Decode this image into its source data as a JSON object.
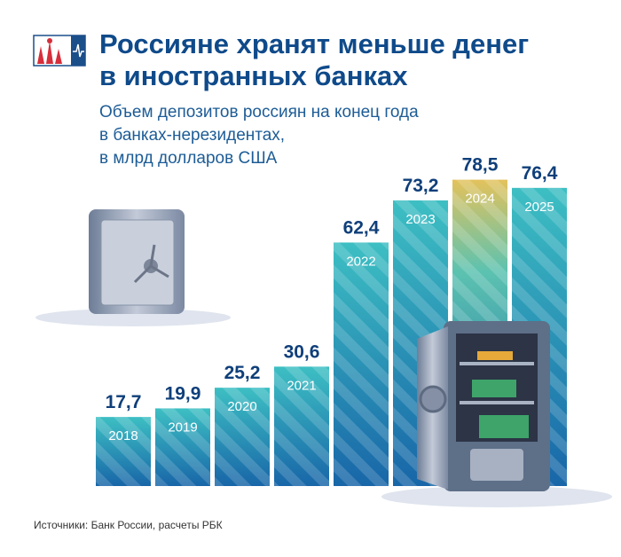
{
  "chart_data": {
    "type": "bar",
    "title": [
      "Россияне хранят меньше денег",
      "в иностранных банках"
    ],
    "subtitle": [
      "Объем депозитов россиян на конец года",
      "в банках-нерезидентах,",
      "в млрд долларов США"
    ],
    "categories": [
      "2018",
      "2019",
      "2020",
      "2021",
      "2022",
      "2023",
      "2024",
      "2025"
    ],
    "values": [
      17.7,
      19.9,
      25.2,
      30.6,
      62.4,
      73.2,
      78.5,
      76.4
    ],
    "value_labels": [
      "17,7",
      "19,9",
      "25,2",
      "30,6",
      "62,4",
      "73,2",
      "78,5",
      "76,4"
    ],
    "color": "#1f86bd",
    "source": "Источники: Банк России, расчеты РБК"
  }
}
